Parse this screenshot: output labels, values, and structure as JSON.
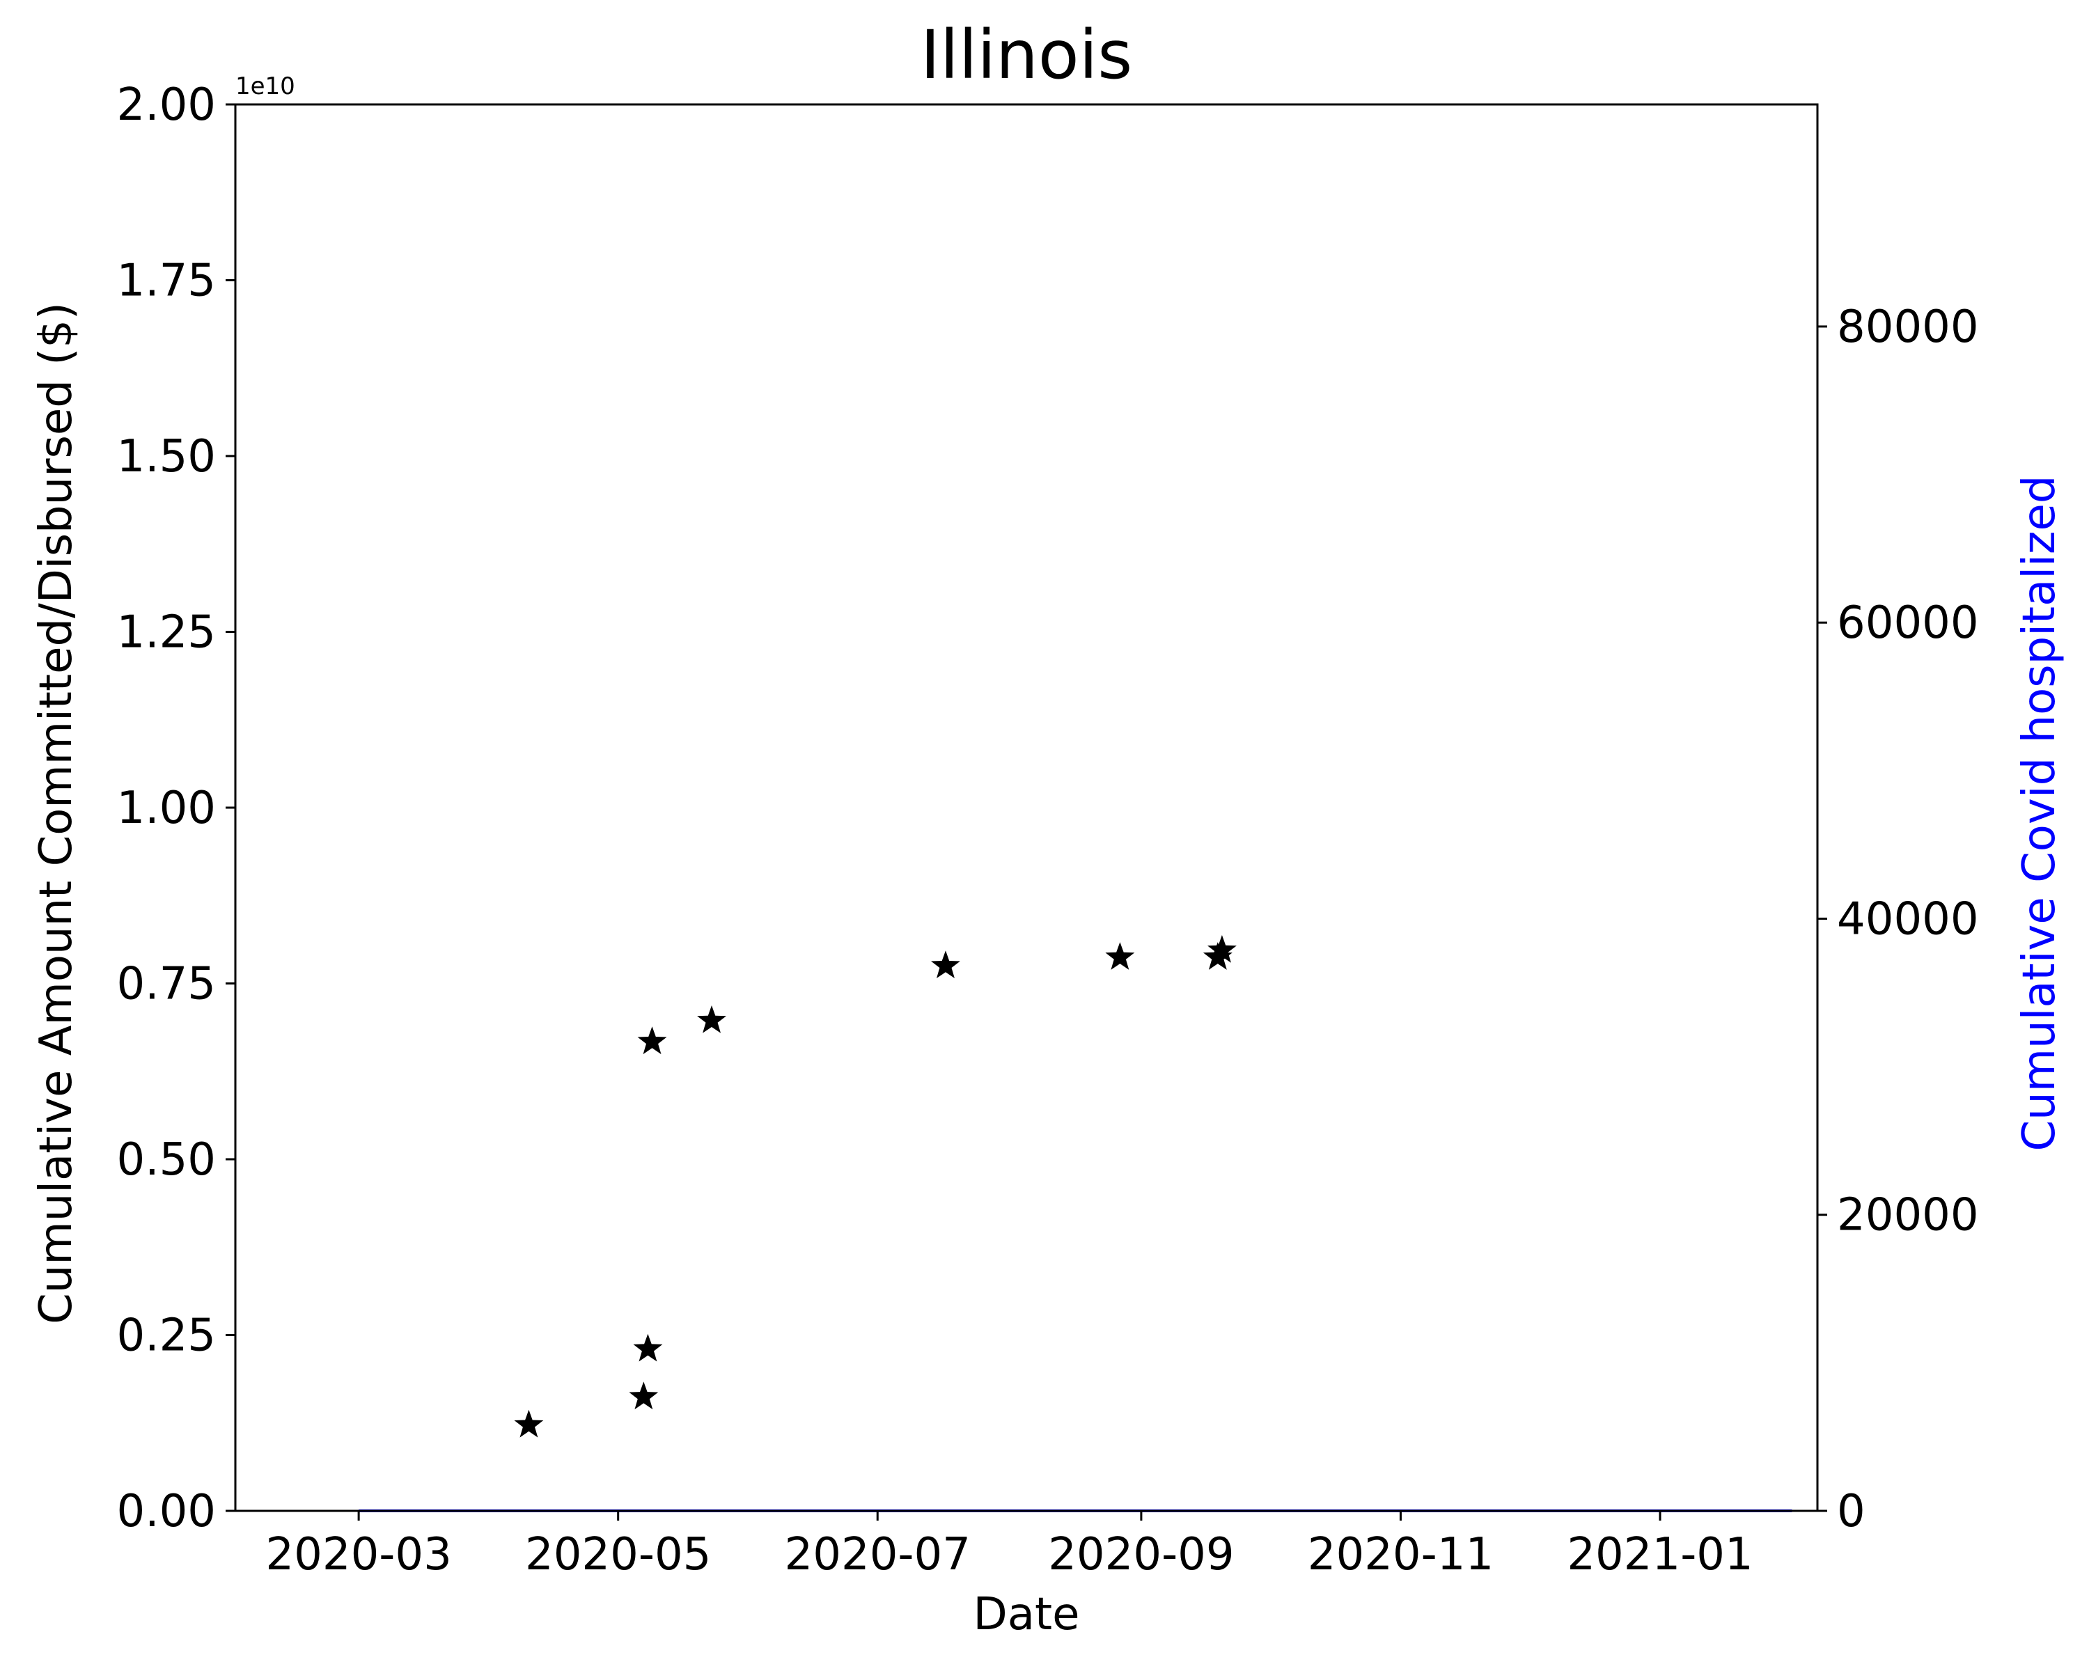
{
  "chart_data": {
    "type": "scatter",
    "title": "Illinois",
    "xlabel": "Date",
    "ylabel": "Cumulative Amount Committed/Disbursed ($)",
    "y2label": "Cumulative Covid hospitalized",
    "y_offset_label": "1e10",
    "x_tick_labels": [
      "2020-03",
      "2020-05",
      "2020-07",
      "2020-09",
      "2020-11",
      "2021-01"
    ],
    "y_tick_labels": [
      "0.00",
      "0.25",
      "0.50",
      "0.75",
      "1.00",
      "1.25",
      "1.50",
      "1.75",
      "2.00"
    ],
    "y2_tick_labels": [
      "0",
      "20000",
      "40000",
      "60000",
      "80000"
    ],
    "xlim": [
      "2020-02-01",
      "2021-02-07"
    ],
    "ylim": [
      0,
      2.0
    ],
    "y2lim": [
      0,
      95000
    ],
    "grid": false,
    "colors": {
      "points": "#000000",
      "hospitalized_line": "#0000ff",
      "y2label": "#0000ff"
    },
    "series": [
      {
        "marker": "star",
        "x": [
          "2020-04-10",
          "2020-05-07",
          "2020-05-08",
          "2020-05-09",
          "2020-05-23",
          "2020-07-17",
          "2020-08-27",
          "2020-09-19",
          "2020-09-20"
        ],
        "y": [
          0.122,
          0.162,
          0.23,
          0.667,
          0.697,
          0.775,
          0.787,
          0.787,
          0.797
        ]
      },
      {
        "type": "line",
        "axis": "right",
        "x": [
          "2020-03-01",
          "2021-02-01"
        ],
        "y": [
          0,
          0
        ]
      }
    ]
  }
}
